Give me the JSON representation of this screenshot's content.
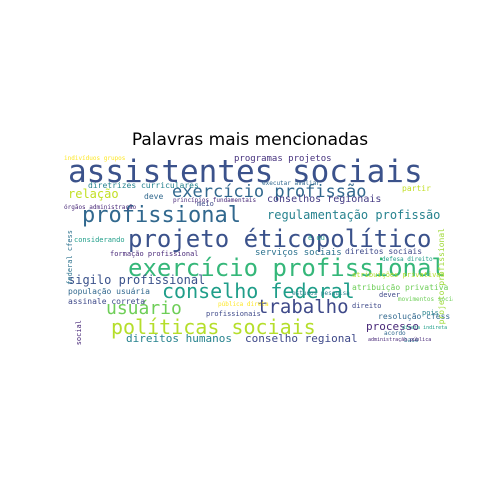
{
  "title": "Palavras mais mencionadas",
  "words": [
    {
      "text": "assistentes sociais",
      "color": "#3b528b"
    },
    {
      "text": "projeto éticopolítico",
      "color": "#3b528b"
    },
    {
      "text": "exercício profissional",
      "color": "#35b779"
    },
    {
      "text": "profissional",
      "color": "#31688e"
    },
    {
      "text": "exercício profissão",
      "color": "#31688e"
    },
    {
      "text": "conselho federal",
      "color": "#1f9e89"
    },
    {
      "text": "políticas sociais",
      "color": "#b5de2b"
    },
    {
      "text": "trabalho",
      "color": "#3e4989"
    },
    {
      "text": "usuário",
      "color": "#6ece58"
    },
    {
      "text": "sigilo profissional",
      "color": "#3b528b"
    },
    {
      "text": "regulamentação profissão",
      "color": "#26828e"
    },
    {
      "text": "direitos humanos",
      "color": "#26828e"
    },
    {
      "text": "conselho regional",
      "color": "#3e4989"
    },
    {
      "text": "processo",
      "color": "#482878"
    },
    {
      "text": "relação",
      "color": "#c2df23"
    },
    {
      "text": "conselhos regionais",
      "color": "#443a83"
    },
    {
      "text": "programas projetos",
      "color": "#46327e"
    },
    {
      "text": "diretrizes curriculares",
      "color": "#26828e"
    },
    {
      "text": "serviços sociais",
      "color": "#2c728e"
    },
    {
      "text": "formação profissional",
      "color": "#482878"
    },
    {
      "text": "população usuária",
      "color": "#31688e"
    },
    {
      "text": "assinale correta",
      "color": "#3e4989"
    },
    {
      "text": "considerando",
      "color": "#1f9e89"
    },
    {
      "text": "indivíduos grupos",
      "color": "#fde725"
    },
    {
      "text": "atribuições privativas",
      "color": "#b5de2b"
    },
    {
      "text": "atribuição privativa",
      "color": "#6ece58"
    },
    {
      "text": "resolução cfess",
      "color": "#31688e"
    },
    {
      "text": "direitos sociais",
      "color": "#3e4989"
    },
    {
      "text": "projeto profissional",
      "color": "#a0da39"
    },
    {
      "text": "princípios fundamentais",
      "color": "#482878"
    },
    {
      "text": "executar avaliar",
      "color": "#31688e"
    },
    {
      "text": "deve",
      "color": "#31688e"
    },
    {
      "text": "partir",
      "color": "#c2df23"
    },
    {
      "text": "meio",
      "color": "#3e4989"
    },
    {
      "text": "órgãos administração",
      "color": "#482878"
    },
    {
      "text": "federal cfess",
      "color": "#2c728e"
    },
    {
      "text": "social",
      "color": "#482878"
    },
    {
      "text": "profissionais",
      "color": "#3e4989"
    },
    {
      "text": "pública direta",
      "color": "#fde725"
    },
    {
      "text": "estudos pesquisa",
      "color": "#26828e"
    },
    {
      "text": "defesa direito",
      "color": "#1f9e89"
    },
    {
      "text": "dever",
      "color": "#3e4989"
    },
    {
      "text": "movimentos sociais",
      "color": "#6ece58"
    },
    {
      "text": "direito",
      "color": "#3e4989"
    },
    {
      "text": "pois",
      "color": "#26828e"
    },
    {
      "text": "acordo",
      "color": "#31688e"
    },
    {
      "text": "base",
      "color": "#2c728e"
    },
    {
      "text": "direta indireta",
      "color": "#1f9e89"
    },
    {
      "text": "administração pública",
      "color": "#482878"
    },
    {
      "text": "é ou",
      "color": "#1f9e89"
    }
  ]
}
